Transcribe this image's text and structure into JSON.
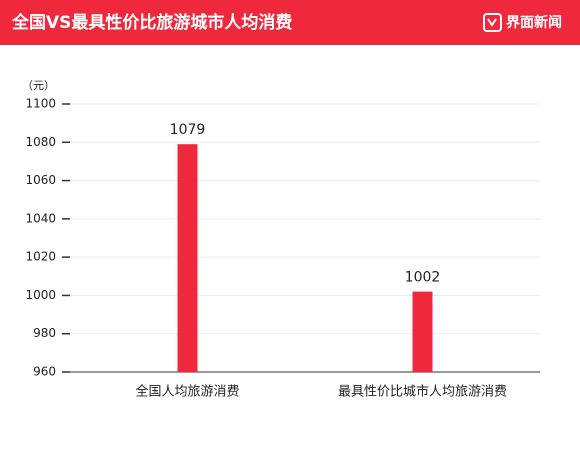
{
  "chart_data": {
    "type": "bar",
    "title": "全国VS最具性价比旅游城市人均消费",
    "brand": "界面新闻",
    "y_label": "（元）",
    "categories": [
      "全国人均旅游消费",
      "最具性价比城市人均旅游消费"
    ],
    "values": [
      1079,
      1002
    ],
    "color": "#f0283c",
    "ylim": [
      960,
      1100
    ],
    "yticks": [
      960,
      980,
      1000,
      1020,
      1040,
      1060,
      1080,
      1100
    ],
    "grid": true
  }
}
